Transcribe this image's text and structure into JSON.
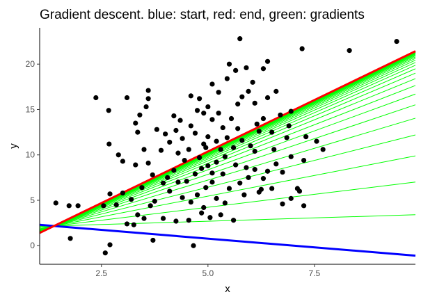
{
  "chart_data": {
    "type": "scatter",
    "title": "Gradient descent. blue: start, red: end, green: gradients",
    "xlabel": "x",
    "ylabel": "y",
    "xlim": [
      1.05,
      9.87
    ],
    "ylim": [
      -2.05,
      24.0
    ],
    "xticks": [
      2.5,
      5.0,
      7.5
    ],
    "xtick_labels": [
      "2.5",
      "5.0",
      "7.5"
    ],
    "yticks": [
      0,
      5,
      10,
      15,
      20
    ],
    "ytick_labels": [
      "0",
      "5",
      "10",
      "15",
      "20"
    ],
    "grid": false,
    "colors": {
      "points": "#000000",
      "start": "#0000ff",
      "end": "#ff0000",
      "gradients": "#00ff00",
      "axis": "#000000",
      "tick_label": "#4d4d4d"
    },
    "start_line": {
      "intercept": 2.7,
      "slope": -0.385
    },
    "end_line": {
      "intercept": -0.98,
      "slope": 2.27
    },
    "gradient_steps": {
      "count": 30,
      "decay": 0.8
    },
    "points": [
      [
        5.75,
        22.8
      ],
      [
        7.21,
        21.7
      ],
      [
        8.32,
        21.5
      ],
      [
        9.43,
        22.5
      ],
      [
        1.43,
        4.7
      ],
      [
        1.74,
        4.4
      ],
      [
        1.95,
        4.4
      ],
      [
        1.77,
        0.8
      ],
      [
        2.59,
        -0.8
      ],
      [
        2.7,
        0.1
      ],
      [
        4.66,
        0.0
      ],
      [
        3.26,
        2.3
      ],
      [
        3.71,
        0.6
      ],
      [
        2.37,
        16.3
      ],
      [
        2.67,
        14.9
      ],
      [
        3.6,
        17.1
      ],
      [
        3.6,
        16.2
      ],
      [
        3.55,
        15.3
      ],
      [
        3.4,
        14.4
      ],
      [
        2.68,
        11.2
      ],
      [
        2.9,
        10.0
      ],
      [
        3.0,
        9.3
      ],
      [
        3.35,
        12.5
      ],
      [
        3.5,
        10.6
      ],
      [
        3.6,
        9.1
      ],
      [
        3.3,
        8.9
      ],
      [
        3.8,
        12.8
      ],
      [
        4.0,
        12.3
      ],
      [
        4.2,
        14.3
      ],
      [
        4.35,
        13.8
      ],
      [
        4.6,
        16.5
      ],
      [
        4.8,
        16.2
      ],
      [
        4.75,
        14.9
      ],
      [
        4.9,
        14.6
      ],
      [
        5.0,
        15.3
      ],
      [
        5.1,
        13.9
      ],
      [
        4.6,
        13.2
      ],
      [
        4.4,
        11.8
      ],
      [
        4.1,
        11.4
      ],
      [
        3.9,
        10.5
      ],
      [
        4.3,
        10.2
      ],
      [
        4.7,
        12.4
      ],
      [
        5.0,
        12.0
      ],
      [
        5.2,
        11.5
      ],
      [
        5.35,
        13.0
      ],
      [
        5.55,
        14.0
      ],
      [
        5.7,
        15.6
      ],
      [
        5.8,
        16.4
      ],
      [
        5.95,
        17.0
      ],
      [
        6.05,
        18.0
      ],
      [
        6.3,
        19.5
      ],
      [
        6.4,
        20.3
      ],
      [
        5.5,
        20.0
      ],
      [
        5.65,
        19.3
      ],
      [
        5.9,
        19.6
      ],
      [
        5.45,
        18.4
      ],
      [
        5.25,
        16.9
      ],
      [
        5.1,
        17.8
      ],
      [
        6.1,
        15.7
      ],
      [
        6.4,
        16.3
      ],
      [
        6.6,
        17.0
      ],
      [
        6.3,
        14.0
      ],
      [
        6.7,
        14.4
      ],
      [
        6.9,
        13.2
      ],
      [
        6.95,
        14.8
      ],
      [
        6.2,
        12.6
      ],
      [
        6.5,
        12.5
      ],
      [
        5.6,
        10.8
      ],
      [
        5.8,
        11.6
      ],
      [
        6.0,
        11.0
      ],
      [
        6.85,
        11.9
      ],
      [
        7.3,
        12.0
      ],
      [
        7.55,
        11.5
      ],
      [
        7.7,
        10.6
      ],
      [
        7.25,
        9.4
      ],
      [
        6.95,
        9.8
      ],
      [
        6.6,
        9.0
      ],
      [
        6.4,
        8.2
      ],
      [
        6.3,
        7.4
      ],
      [
        6.5,
        6.3
      ],
      [
        6.25,
        6.2
      ],
      [
        6.2,
        5.9
      ],
      [
        5.95,
        7.5
      ],
      [
        6.1,
        10.4
      ],
      [
        5.4,
        9.8
      ],
      [
        5.2,
        9.2
      ],
      [
        5.0,
        8.8
      ],
      [
        4.85,
        8.5
      ],
      [
        5.1,
        7.0
      ],
      [
        4.95,
        6.4
      ],
      [
        4.7,
        7.9
      ],
      [
        4.5,
        7.1
      ],
      [
        4.3,
        7.0
      ],
      [
        4.2,
        8.3
      ],
      [
        4.05,
        7.5
      ],
      [
        3.95,
        6.9
      ],
      [
        4.1,
        6.0
      ],
      [
        4.4,
        5.3
      ],
      [
        4.6,
        4.8
      ],
      [
        4.75,
        5.6
      ],
      [
        4.9,
        4.2
      ],
      [
        5.05,
        3.1
      ],
      [
        5.3,
        3.4
      ],
      [
        5.6,
        2.8
      ],
      [
        5.4,
        4.7
      ],
      [
        5.2,
        5.2
      ],
      [
        3.75,
        4.9
      ],
      [
        3.65,
        4.4
      ],
      [
        3.95,
        3.0
      ],
      [
        3.5,
        3.0
      ],
      [
        3.35,
        3.4
      ],
      [
        3.1,
        2.4
      ],
      [
        2.85,
        4.5
      ],
      [
        2.7,
        5.7
      ],
      [
        2.55,
        4.4
      ],
      [
        3.0,
        5.8
      ],
      [
        3.2,
        5.1
      ],
      [
        3.45,
        6.4
      ],
      [
        3.7,
        7.8
      ],
      [
        4.25,
        2.7
      ],
      [
        4.55,
        2.8
      ],
      [
        4.85,
        3.6
      ],
      [
        5.1,
        8.0
      ],
      [
        5.35,
        7.9
      ],
      [
        5.5,
        6.3
      ],
      [
        5.75,
        6.9
      ],
      [
        5.9,
        8.6
      ],
      [
        6.1,
        8.4
      ],
      [
        5.45,
        11.9
      ],
      [
        5.3,
        10.6
      ],
      [
        4.55,
        10.6
      ],
      [
        4.8,
        9.7
      ],
      [
        4.95,
        10.8
      ],
      [
        5.65,
        8.9
      ],
      [
        6.75,
        8.1
      ],
      [
        6.75,
        4.6
      ],
      [
        7.1,
        6.3
      ],
      [
        7.25,
        4.4
      ],
      [
        7.15,
        6.0
      ],
      [
        6.95,
        5.2
      ],
      [
        5.85,
        5.6
      ],
      [
        5.7,
        12.9
      ],
      [
        6.15,
        13.4
      ],
      [
        4.45,
        9.4
      ],
      [
        4.25,
        12.7
      ],
      [
        3.3,
        13.5
      ],
      [
        3.1,
        16.3
      ],
      [
        4.9,
        11.2
      ],
      [
        5.25,
        14.6
      ],
      [
        6.55,
        10.6
      ]
    ]
  }
}
